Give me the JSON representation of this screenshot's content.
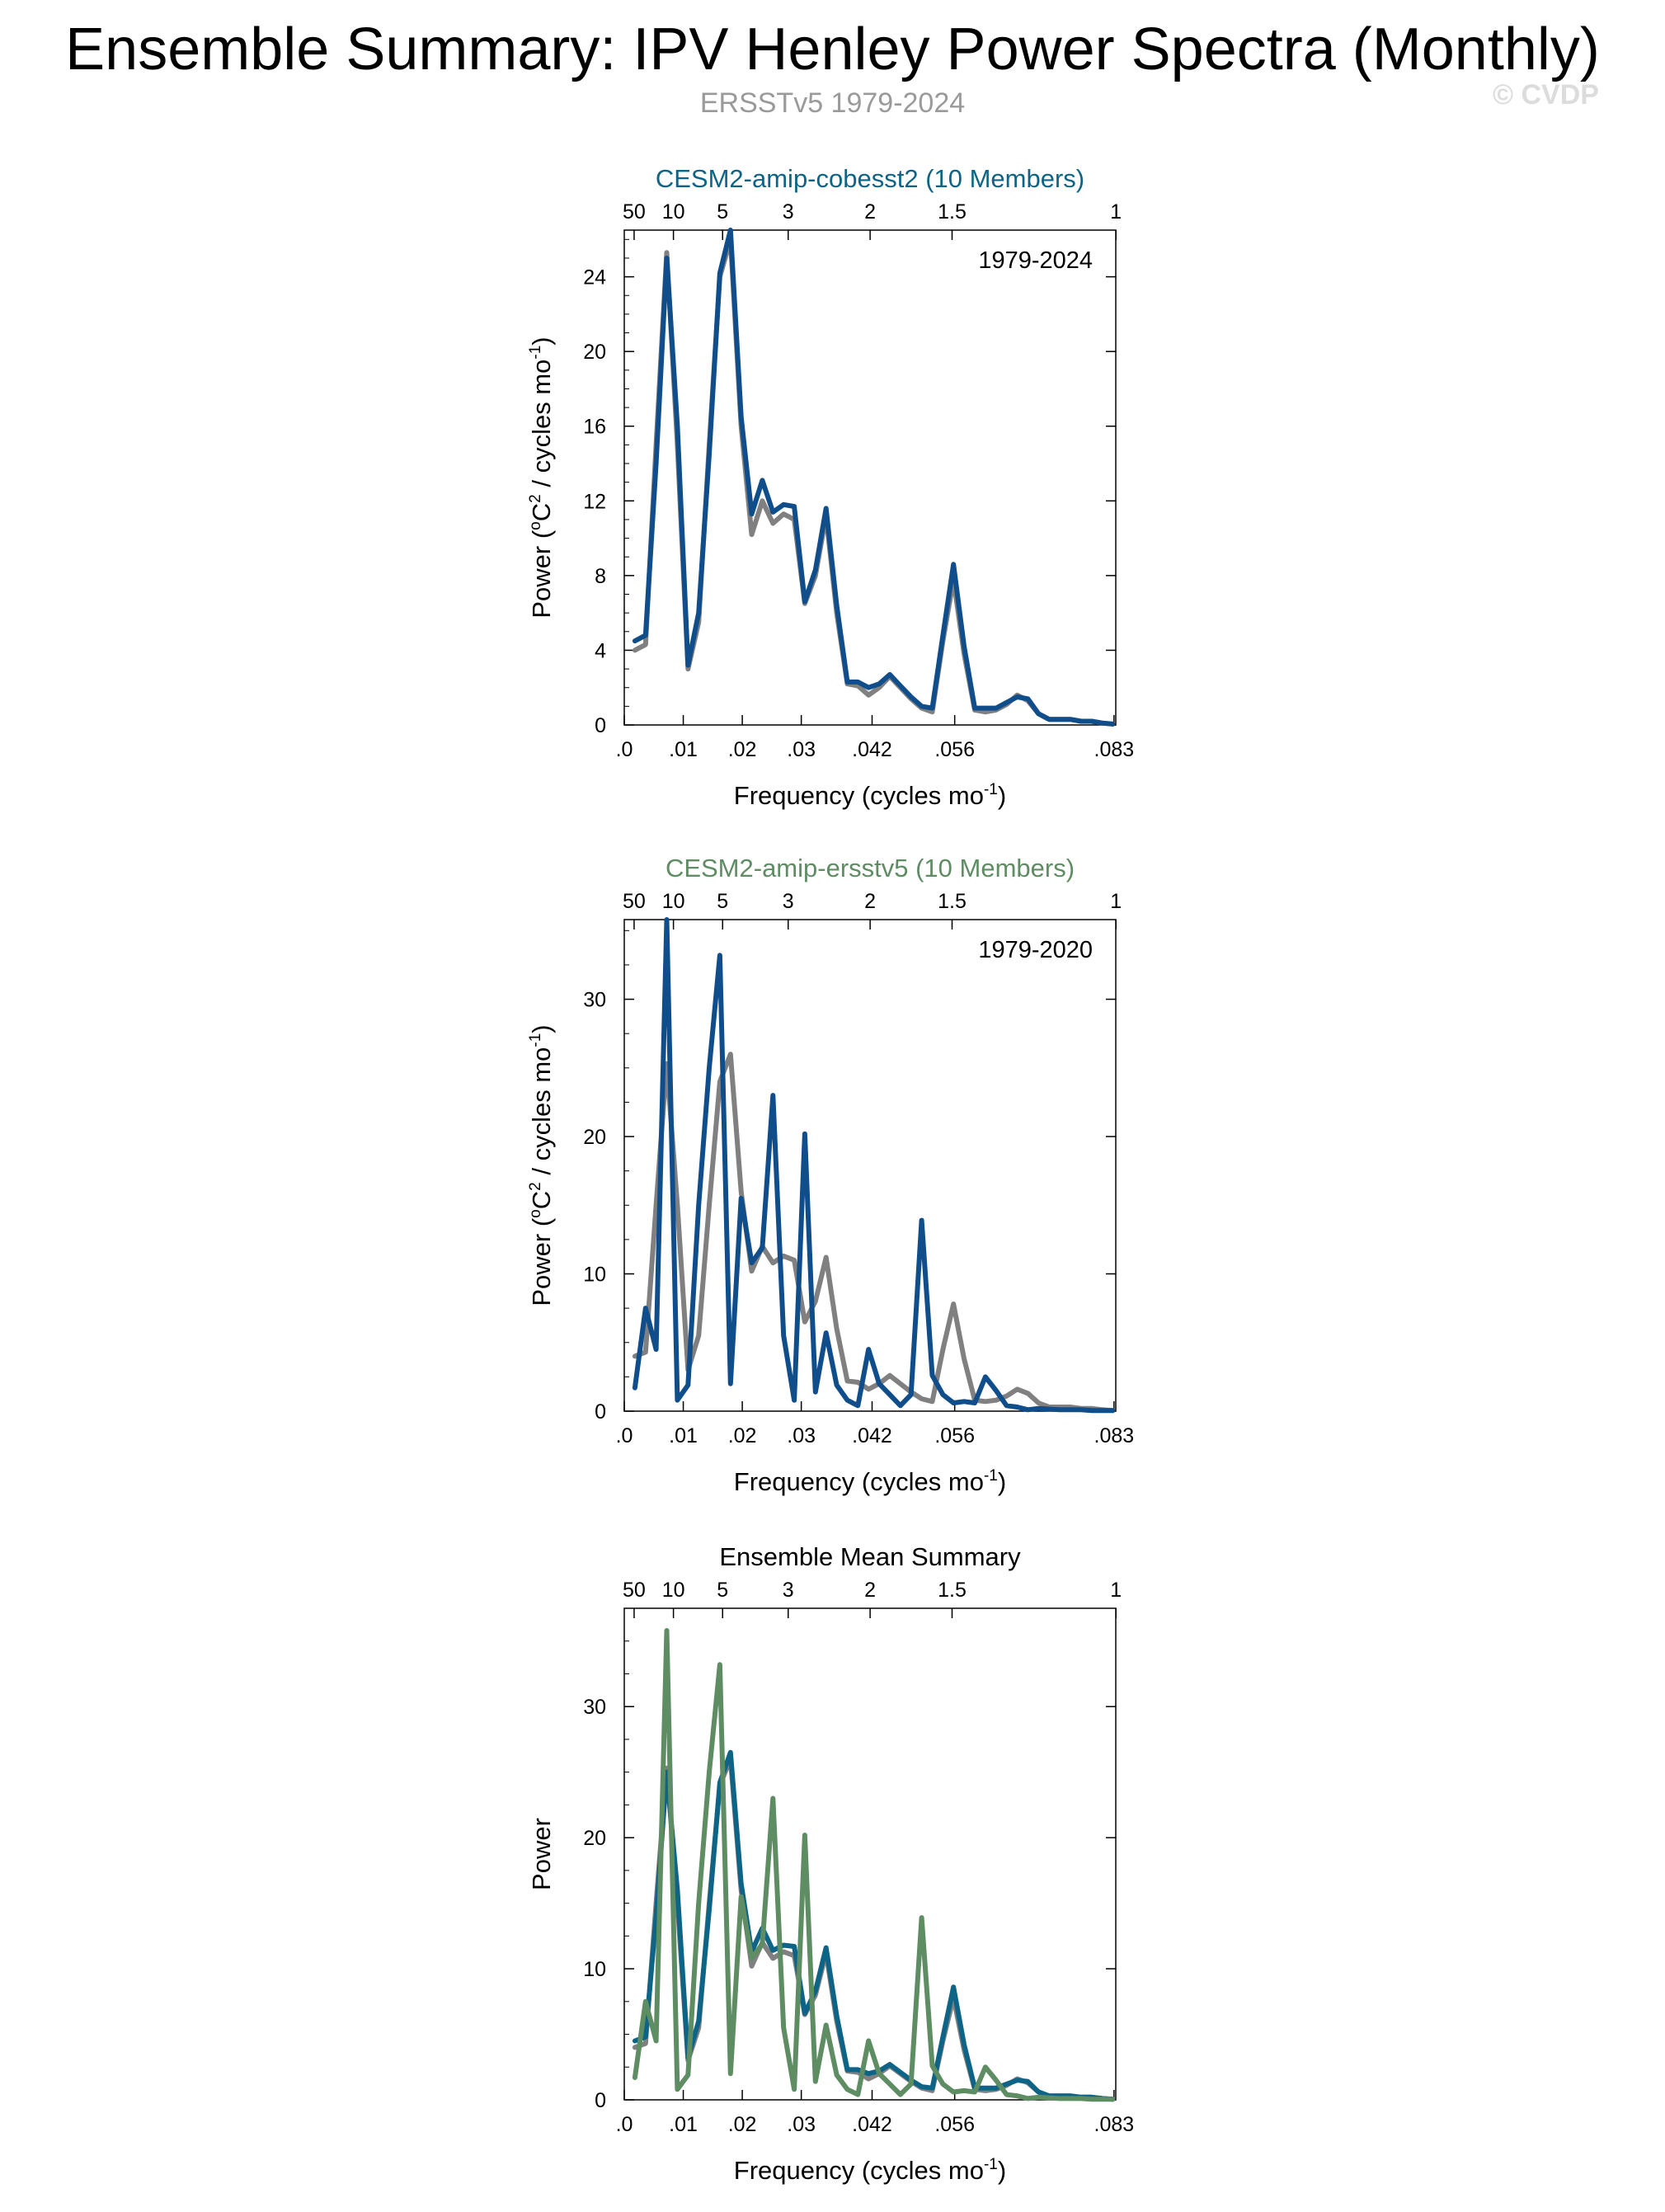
{
  "header": {
    "title": "Ensemble Summary: IPV Henley Power Spectra (Monthly)",
    "subtitle": "ERSSTv5 1979-2024",
    "copyright": "© CVDP"
  },
  "colors": {
    "observations": "#808080",
    "cobesst2": "#0d6486",
    "ersstv5": "#5e8c63",
    "member_line": "#104e8b"
  },
  "chart_data": [
    {
      "type": "line",
      "title": "CESM2-amip-cobesst2 (10 Members)",
      "title_color": "#0d6486",
      "period_label": "1979-2024",
      "xlabel": "Frequency (cycles mo",
      "xlabel_sup": "-1",
      "xlabel_end": ")",
      "ylabel_main": "Power (",
      "ylabel_sup1": "o",
      "ylabel_mid": "C",
      "ylabel_sup2": "2",
      "ylabel_tail": " / cycles mo",
      "ylabel_sup3": "-1",
      "ylabel_end": ")",
      "xlim": [
        0,
        0.0833
      ],
      "ylim": [
        0,
        26.5
      ],
      "x_ticks": [
        ".0",
        ".01",
        ".02",
        ".03",
        ".042",
        ".056",
        ".083"
      ],
      "x_tick_values": [
        0,
        0.01,
        0.02,
        0.03,
        0.042,
        0.056,
        0.083
      ],
      "period_ticks": [
        "50",
        "10",
        "5",
        "3",
        "2",
        "1.5",
        "1"
      ],
      "period_tick_values": [
        0.001667,
        0.008333,
        0.016667,
        0.027778,
        0.041667,
        0.055556,
        0.083333
      ],
      "y_ticks": [
        "0",
        "4",
        "8",
        "12",
        "16",
        "20",
        "24"
      ],
      "y_tick_values": [
        0,
        4,
        8,
        12,
        16,
        20,
        24
      ],
      "series": [
        {
          "role": "observations",
          "color": "#808080",
          "x": [
            0.0018,
            0.0036,
            0.0054,
            0.0072,
            0.009,
            0.0108,
            0.0126,
            0.0144,
            0.0162,
            0.018,
            0.0198,
            0.0216,
            0.0234,
            0.0252,
            0.027,
            0.0288,
            0.0306,
            0.0324,
            0.0342,
            0.036,
            0.0378,
            0.0396,
            0.0414,
            0.0432,
            0.045,
            0.0468,
            0.0486,
            0.0504,
            0.0522,
            0.054,
            0.0558,
            0.0576,
            0.0594,
            0.0612,
            0.063,
            0.0648,
            0.0666,
            0.0684,
            0.0702,
            0.072,
            0.0738,
            0.0756,
            0.0774,
            0.0792,
            0.081,
            0.0828
          ],
          "y": [
            4.0,
            4.3,
            15.0,
            25.3,
            15.0,
            3.0,
            5.5,
            15.0,
            24.0,
            26.0,
            16.0,
            10.2,
            12.0,
            10.8,
            11.3,
            11.0,
            6.5,
            8.0,
            11.2,
            6.0,
            2.2,
            2.1,
            1.6,
            2.0,
            2.6,
            2.0,
            1.4,
            0.9,
            0.7,
            4.5,
            7.8,
            3.8,
            0.8,
            0.7,
            0.8,
            1.1,
            1.6,
            1.3,
            0.6,
            0.3,
            0.3,
            0.3,
            0.2,
            0.2,
            0.1,
            0.05
          ]
        },
        {
          "role": "CESM2-amip-cobesst2 ensemble",
          "color": "#104e8b",
          "x": [
            0.0018,
            0.0036,
            0.0054,
            0.0072,
            0.009,
            0.0108,
            0.0126,
            0.0144,
            0.0162,
            0.018,
            0.0198,
            0.0216,
            0.0234,
            0.0252,
            0.027,
            0.0288,
            0.0306,
            0.0324,
            0.0342,
            0.036,
            0.0378,
            0.0396,
            0.0414,
            0.0432,
            0.045,
            0.0468,
            0.0486,
            0.0504,
            0.0522,
            0.054,
            0.0558,
            0.0576,
            0.0594,
            0.0612,
            0.063,
            0.0648,
            0.0666,
            0.0684,
            0.0702,
            0.072,
            0.0738,
            0.0756,
            0.0774,
            0.0792,
            0.081,
            0.0828
          ],
          "y": [
            4.5,
            4.8,
            14.0,
            25.0,
            16.0,
            3.2,
            6.0,
            14.5,
            24.2,
            26.5,
            16.5,
            11.3,
            13.1,
            11.4,
            11.8,
            11.7,
            6.6,
            8.3,
            11.6,
            6.4,
            2.3,
            2.3,
            2.0,
            2.2,
            2.7,
            2.1,
            1.5,
            1.0,
            0.9,
            4.8,
            8.6,
            4.2,
            0.9,
            0.9,
            0.9,
            1.2,
            1.5,
            1.4,
            0.6,
            0.3,
            0.3,
            0.3,
            0.2,
            0.2,
            0.1,
            0.05
          ]
        }
      ]
    },
    {
      "type": "line",
      "title": "CESM2-amip-ersstv5 (10 Members)",
      "title_color": "#5e8c63",
      "period_label": "1979-2020",
      "xlabel": "Frequency (cycles mo",
      "xlabel_sup": "-1",
      "xlabel_end": ")",
      "ylabel_main": "Power (",
      "ylabel_sup1": "o",
      "ylabel_mid": "C",
      "ylabel_sup2": "2",
      "ylabel_tail": " / cycles mo",
      "ylabel_sup3": "-1",
      "ylabel_end": ")",
      "xlim": [
        0,
        0.0833
      ],
      "ylim": [
        0,
        35.8
      ],
      "x_ticks": [
        ".0",
        ".01",
        ".02",
        ".03",
        ".042",
        ".056",
        ".083"
      ],
      "x_tick_values": [
        0,
        0.01,
        0.02,
        0.03,
        0.042,
        0.056,
        0.083
      ],
      "period_ticks": [
        "50",
        "10",
        "5",
        "3",
        "2",
        "1.5",
        "1"
      ],
      "period_tick_values": [
        0.001667,
        0.008333,
        0.016667,
        0.027778,
        0.041667,
        0.055556,
        0.083333
      ],
      "y_ticks": [
        "0",
        "10",
        "20",
        "30"
      ],
      "y_tick_values": [
        0,
        10,
        20,
        30
      ],
      "series": [
        {
          "role": "observations",
          "color": "#808080",
          "x": [
            0.0018,
            0.0036,
            0.0054,
            0.0072,
            0.009,
            0.0108,
            0.0126,
            0.0144,
            0.0162,
            0.018,
            0.0198,
            0.0216,
            0.0234,
            0.0252,
            0.027,
            0.0288,
            0.0306,
            0.0324,
            0.0342,
            0.036,
            0.0378,
            0.0396,
            0.0414,
            0.0432,
            0.045,
            0.0468,
            0.0486,
            0.0504,
            0.0522,
            0.054,
            0.0558,
            0.0576,
            0.0594,
            0.0612,
            0.063,
            0.0648,
            0.0666,
            0.0684,
            0.0702,
            0.072,
            0.0738,
            0.0756,
            0.0774,
            0.0792,
            0.081,
            0.0828
          ],
          "y": [
            4.0,
            4.3,
            15.0,
            25.3,
            15.0,
            3.0,
            5.5,
            15.0,
            24.0,
            26.0,
            16.0,
            10.2,
            12.0,
            10.8,
            11.3,
            11.0,
            6.5,
            8.0,
            11.2,
            6.0,
            2.2,
            2.1,
            1.6,
            2.0,
            2.6,
            2.0,
            1.4,
            0.9,
            0.7,
            4.5,
            7.8,
            3.8,
            0.8,
            0.7,
            0.8,
            1.1,
            1.6,
            1.3,
            0.6,
            0.3,
            0.3,
            0.3,
            0.2,
            0.2,
            0.1,
            0.05
          ]
        },
        {
          "role": "CESM2-amip-ersstv5 ensemble",
          "color": "#104e8b",
          "x": [
            0.0018,
            0.0036,
            0.0054,
            0.0072,
            0.009,
            0.0108,
            0.0126,
            0.0144,
            0.0162,
            0.018,
            0.0198,
            0.0216,
            0.0234,
            0.0252,
            0.027,
            0.0288,
            0.0306,
            0.0324,
            0.0342,
            0.036,
            0.0378,
            0.0396,
            0.0414,
            0.0432,
            0.045,
            0.0468,
            0.0486,
            0.0504,
            0.0522,
            0.054,
            0.0558,
            0.0576,
            0.0594,
            0.0612,
            0.063,
            0.0648,
            0.0666,
            0.0684,
            0.0702,
            0.072,
            0.0738,
            0.0756,
            0.0774,
            0.0792,
            0.081,
            0.0828
          ],
          "y": [
            1.7,
            7.5,
            4.5,
            35.8,
            0.8,
            1.9,
            15.0,
            25.0,
            33.2,
            2.0,
            15.5,
            10.8,
            11.9,
            23.0,
            5.5,
            0.8,
            20.2,
            1.4,
            5.7,
            1.9,
            0.8,
            0.4,
            4.5,
            2.0,
            1.2,
            0.4,
            1.2,
            13.9,
            2.6,
            1.2,
            0.6,
            0.7,
            0.6,
            2.5,
            1.5,
            0.4,
            0.3,
            0.1,
            0.2,
            0.15,
            0.1,
            0.1,
            0.1,
            0.05,
            0.05,
            0.05
          ]
        }
      ]
    },
    {
      "type": "line",
      "title": "Ensemble Mean Summary",
      "title_color": "#000000",
      "period_label": "",
      "xlabel": "Frequency (cycles mo",
      "xlabel_sup": "-1",
      "xlabel_end": ")",
      "ylabel_main": "Power",
      "xlim": [
        0,
        0.0833
      ],
      "ylim": [
        0,
        37.5
      ],
      "x_ticks": [
        ".0",
        ".01",
        ".02",
        ".03",
        ".042",
        ".056",
        ".083"
      ],
      "x_tick_values": [
        0,
        0.01,
        0.02,
        0.03,
        0.042,
        0.056,
        0.083
      ],
      "period_ticks": [
        "50",
        "10",
        "5",
        "3",
        "2",
        "1.5",
        "1"
      ],
      "period_tick_values": [
        0.001667,
        0.008333,
        0.016667,
        0.027778,
        0.041667,
        0.055556,
        0.083333
      ],
      "y_ticks": [
        "0",
        "10",
        "20",
        "30"
      ],
      "y_tick_values": [
        0,
        10,
        20,
        30
      ],
      "series": [
        {
          "role": "observations",
          "color": "#808080",
          "x": [
            0.0018,
            0.0036,
            0.0054,
            0.0072,
            0.009,
            0.0108,
            0.0126,
            0.0144,
            0.0162,
            0.018,
            0.0198,
            0.0216,
            0.0234,
            0.0252,
            0.027,
            0.0288,
            0.0306,
            0.0324,
            0.0342,
            0.036,
            0.0378,
            0.0396,
            0.0414,
            0.0432,
            0.045,
            0.0468,
            0.0486,
            0.0504,
            0.0522,
            0.054,
            0.0558,
            0.0576,
            0.0594,
            0.0612,
            0.063,
            0.0648,
            0.0666,
            0.0684,
            0.0702,
            0.072,
            0.0738,
            0.0756,
            0.0774,
            0.0792,
            0.081,
            0.0828
          ],
          "y": [
            4.0,
            4.3,
            15.0,
            25.3,
            15.0,
            3.0,
            5.5,
            15.0,
            24.0,
            26.0,
            16.0,
            10.2,
            12.0,
            10.8,
            11.3,
            11.0,
            6.5,
            8.0,
            11.2,
            6.0,
            2.2,
            2.1,
            1.6,
            2.0,
            2.6,
            2.0,
            1.4,
            0.9,
            0.7,
            4.5,
            7.8,
            3.8,
            0.8,
            0.7,
            0.8,
            1.1,
            1.6,
            1.3,
            0.6,
            0.3,
            0.3,
            0.3,
            0.2,
            0.2,
            0.1,
            0.05
          ]
        },
        {
          "role": "CESM2-amip-cobesst2 mean",
          "color": "#0d6486",
          "x": [
            0.0018,
            0.0036,
            0.0054,
            0.0072,
            0.009,
            0.0108,
            0.0126,
            0.0144,
            0.0162,
            0.018,
            0.0198,
            0.0216,
            0.0234,
            0.0252,
            0.027,
            0.0288,
            0.0306,
            0.0324,
            0.0342,
            0.036,
            0.0378,
            0.0396,
            0.0414,
            0.0432,
            0.045,
            0.0468,
            0.0486,
            0.0504,
            0.0522,
            0.054,
            0.0558,
            0.0576,
            0.0594,
            0.0612,
            0.063,
            0.0648,
            0.0666,
            0.0684,
            0.0702,
            0.072,
            0.0738,
            0.0756,
            0.0774,
            0.0792,
            0.081,
            0.0828
          ],
          "y": [
            4.5,
            4.8,
            14.0,
            25.0,
            16.0,
            3.2,
            6.0,
            14.5,
            24.2,
            26.5,
            16.5,
            11.3,
            13.1,
            11.4,
            11.8,
            11.7,
            6.6,
            8.3,
            11.6,
            6.4,
            2.3,
            2.3,
            2.0,
            2.2,
            2.7,
            2.1,
            1.5,
            1.0,
            0.9,
            4.8,
            8.6,
            4.2,
            0.9,
            0.9,
            0.9,
            1.2,
            1.5,
            1.4,
            0.6,
            0.3,
            0.3,
            0.3,
            0.2,
            0.2,
            0.1,
            0.05
          ]
        },
        {
          "role": "CESM2-amip-ersstv5 mean",
          "color": "#5e8c63",
          "x": [
            0.0018,
            0.0036,
            0.0054,
            0.0072,
            0.009,
            0.0108,
            0.0126,
            0.0144,
            0.0162,
            0.018,
            0.0198,
            0.0216,
            0.0234,
            0.0252,
            0.027,
            0.0288,
            0.0306,
            0.0324,
            0.0342,
            0.036,
            0.0378,
            0.0396,
            0.0414,
            0.0432,
            0.045,
            0.0468,
            0.0486,
            0.0504,
            0.0522,
            0.054,
            0.0558,
            0.0576,
            0.0594,
            0.0612,
            0.063,
            0.0648,
            0.0666,
            0.0684,
            0.0702,
            0.072,
            0.0738,
            0.0756,
            0.0774,
            0.0792,
            0.081,
            0.0828
          ],
          "y": [
            1.7,
            7.5,
            4.5,
            35.8,
            0.8,
            1.9,
            15.0,
            25.0,
            33.2,
            2.0,
            15.5,
            10.8,
            11.9,
            23.0,
            5.5,
            0.8,
            20.2,
            1.4,
            5.7,
            1.9,
            0.8,
            0.4,
            4.5,
            2.0,
            1.2,
            0.4,
            1.2,
            13.9,
            2.6,
            1.2,
            0.6,
            0.7,
            0.6,
            2.5,
            1.5,
            0.4,
            0.3,
            0.1,
            0.2,
            0.15,
            0.1,
            0.1,
            0.1,
            0.05,
            0.05,
            0.05
          ]
        }
      ]
    }
  ]
}
